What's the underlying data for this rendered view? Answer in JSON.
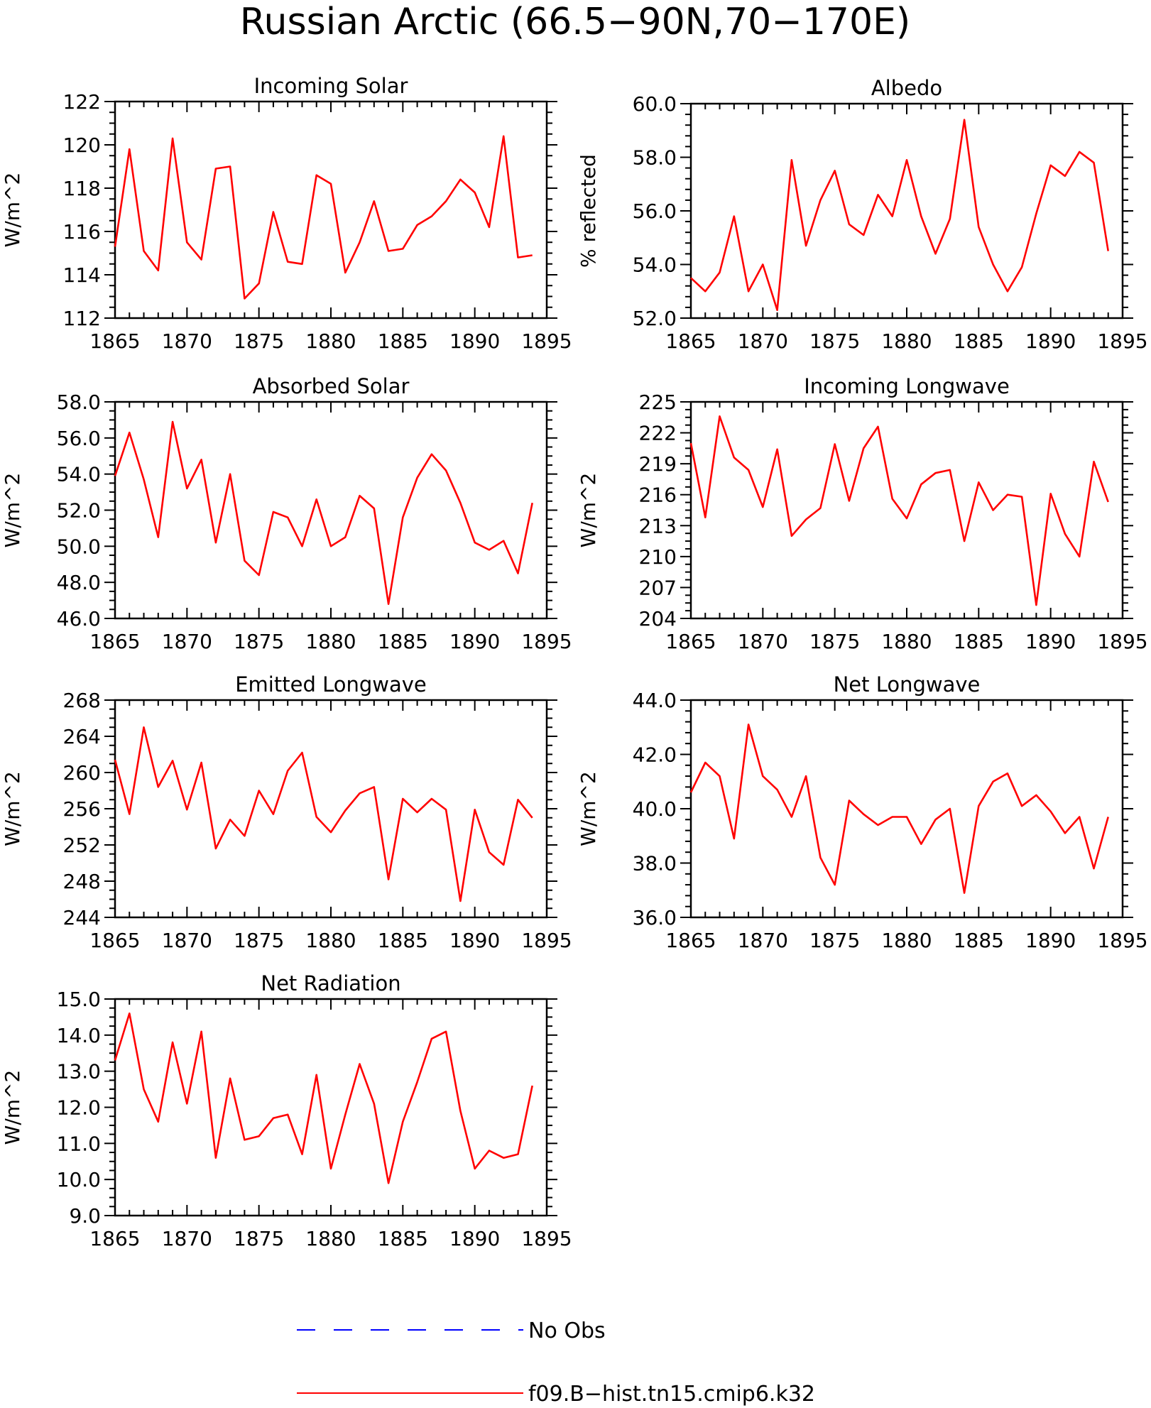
{
  "title": "Russian Arctic (66.5−90N,70−170E)",
  "colors": {
    "model": "#ff0000",
    "obs": "#0000ff"
  },
  "legend": [
    {
      "label": "No Obs",
      "color": "#0000ff",
      "style": "dashed"
    },
    {
      "label": "f09.B−hist.tn15.cmip6.k32",
      "color": "#ff0000",
      "style": "solid"
    }
  ],
  "chart_data": [
    {
      "type": "line",
      "title": "Incoming Solar",
      "ylabel": "W/m^2",
      "xlim": [
        1865,
        1895
      ],
      "ylim": [
        112,
        122
      ],
      "yticks": [
        112,
        114,
        116,
        118,
        120,
        122
      ],
      "ytick_labels": [
        "112",
        "114",
        "116",
        "118",
        "120",
        "122"
      ],
      "xticks": [
        1865,
        1870,
        1875,
        1880,
        1885,
        1890,
        1895
      ],
      "ytick_minor": 0.5,
      "series": [
        {
          "name": "f09.B−hist.tn15.cmip6.k32",
          "x": [
            1865,
            1866,
            1867,
            1868,
            1869,
            1870,
            1871,
            1872,
            1873,
            1874,
            1875,
            1876,
            1877,
            1878,
            1879,
            1880,
            1881,
            1882,
            1883,
            1884,
            1885,
            1886,
            1887,
            1888,
            1889,
            1890,
            1891,
            1892,
            1893,
            1894
          ],
          "values": [
            115.3,
            119.8,
            115.1,
            114.2,
            120.3,
            115.5,
            114.7,
            118.9,
            119.0,
            112.9,
            113.6,
            116.9,
            114.6,
            114.5,
            118.6,
            118.2,
            114.1,
            115.5,
            117.4,
            115.1,
            115.2,
            116.3,
            116.7,
            117.4,
            118.4,
            117.8,
            116.2,
            120.4,
            114.8,
            114.9
          ]
        }
      ]
    },
    {
      "type": "line",
      "title": "Albedo",
      "ylabel": "% reflected",
      "xlim": [
        1865,
        1895
      ],
      "ylim": [
        52,
        60
      ],
      "yticks": [
        52,
        54,
        56,
        58,
        60
      ],
      "ytick_labels": [
        "52.0",
        "54.0",
        "56.0",
        "58.0",
        "60.0"
      ],
      "xticks": [
        1865,
        1870,
        1875,
        1880,
        1885,
        1890,
        1895
      ],
      "ytick_minor": 0.4,
      "series": [
        {
          "name": "f09.B−hist.tn15.cmip6.k32",
          "x": [
            1865,
            1866,
            1867,
            1868,
            1869,
            1870,
            1871,
            1872,
            1873,
            1874,
            1875,
            1876,
            1877,
            1878,
            1879,
            1880,
            1881,
            1882,
            1883,
            1884,
            1885,
            1886,
            1887,
            1888,
            1889,
            1890,
            1891,
            1892,
            1893,
            1894
          ],
          "values": [
            53.5,
            53.0,
            53.7,
            55.8,
            53.0,
            54.0,
            52.3,
            57.9,
            54.7,
            56.4,
            57.5,
            55.5,
            55.1,
            56.6,
            55.8,
            57.9,
            55.8,
            54.4,
            55.7,
            59.4,
            55.4,
            54.0,
            53.0,
            53.9,
            55.9,
            57.7,
            57.3,
            58.2,
            57.8,
            54.5
          ]
        }
      ]
    },
    {
      "type": "line",
      "title": "Absorbed Solar",
      "ylabel": "W/m^2",
      "xlim": [
        1865,
        1895
      ],
      "ylim": [
        46,
        58
      ],
      "yticks": [
        46,
        48,
        50,
        52,
        54,
        56,
        58
      ],
      "ytick_labels": [
        "46.0",
        "48.0",
        "50.0",
        "52.0",
        "54.0",
        "56.0",
        "58.0"
      ],
      "xticks": [
        1865,
        1870,
        1875,
        1880,
        1885,
        1890,
        1895
      ],
      "ytick_minor": 0.5,
      "series": [
        {
          "name": "f09.B−hist.tn15.cmip6.k32",
          "x": [
            1865,
            1866,
            1867,
            1868,
            1869,
            1870,
            1871,
            1872,
            1873,
            1874,
            1875,
            1876,
            1877,
            1878,
            1879,
            1880,
            1881,
            1882,
            1883,
            1884,
            1885,
            1886,
            1887,
            1888,
            1889,
            1890,
            1891,
            1892,
            1893,
            1894
          ],
          "values": [
            53.9,
            56.3,
            53.7,
            50.5,
            56.9,
            53.2,
            54.8,
            50.2,
            54.0,
            49.2,
            48.4,
            51.9,
            51.6,
            50.0,
            52.6,
            50.0,
            50.5,
            52.8,
            52.1,
            46.8,
            51.6,
            53.8,
            55.1,
            54.2,
            52.4,
            50.2,
            49.8,
            50.3,
            48.5,
            52.4
          ]
        }
      ]
    },
    {
      "type": "line",
      "title": "Incoming Longwave",
      "ylabel": "W/m^2",
      "xlim": [
        1865,
        1895
      ],
      "ylim": [
        204,
        225
      ],
      "yticks": [
        204,
        207,
        210,
        213,
        216,
        219,
        222,
        225
      ],
      "ytick_labels": [
        "204",
        "207",
        "210",
        "213",
        "216",
        "219",
        "222",
        "225"
      ],
      "xticks": [
        1865,
        1870,
        1875,
        1880,
        1885,
        1890,
        1895
      ],
      "ytick_minor": 0.75,
      "series": [
        {
          "name": "f09.B−hist.tn15.cmip6.k32",
          "x": [
            1865,
            1866,
            1867,
            1868,
            1869,
            1870,
            1871,
            1872,
            1873,
            1874,
            1875,
            1876,
            1877,
            1878,
            1879,
            1880,
            1881,
            1882,
            1883,
            1884,
            1885,
            1886,
            1887,
            1888,
            1889,
            1890,
            1891,
            1892,
            1893,
            1894
          ],
          "values": [
            221.0,
            213.8,
            223.6,
            219.6,
            218.4,
            214.8,
            220.4,
            212.0,
            213.6,
            214.7,
            220.9,
            215.4,
            220.5,
            222.6,
            215.6,
            213.7,
            217.0,
            218.1,
            218.4,
            211.5,
            217.2,
            214.5,
            216.0,
            215.8,
            205.3,
            216.1,
            212.2,
            210.0,
            219.2,
            215.3
          ]
        }
      ]
    },
    {
      "type": "line",
      "title": "Emitted Longwave",
      "ylabel": "W/m^2",
      "xlim": [
        1865,
        1895
      ],
      "ylim": [
        244,
        268
      ],
      "yticks": [
        244,
        248,
        252,
        256,
        260,
        264,
        268
      ],
      "ytick_labels": [
        "244",
        "248",
        "252",
        "256",
        "260",
        "264",
        "268"
      ],
      "xticks": [
        1865,
        1870,
        1875,
        1880,
        1885,
        1890,
        1895
      ],
      "ytick_minor": 1,
      "series": [
        {
          "name": "f09.B−hist.tn15.cmip6.k32",
          "x": [
            1865,
            1866,
            1867,
            1868,
            1869,
            1870,
            1871,
            1872,
            1873,
            1874,
            1875,
            1876,
            1877,
            1878,
            1879,
            1880,
            1881,
            1882,
            1883,
            1884,
            1885,
            1886,
            1887,
            1888,
            1889,
            1890,
            1891,
            1892,
            1893,
            1894
          ],
          "values": [
            261.4,
            255.4,
            265.0,
            258.4,
            261.3,
            255.9,
            261.1,
            251.6,
            254.8,
            253.0,
            258.0,
            255.4,
            260.2,
            262.2,
            255.1,
            253.4,
            255.8,
            257.7,
            258.4,
            248.2,
            257.1,
            255.6,
            257.1,
            255.9,
            245.8,
            255.9,
            251.2,
            249.8,
            257.0,
            255.0
          ]
        }
      ]
    },
    {
      "type": "line",
      "title": "Net Longwave",
      "ylabel": "W/m^2",
      "xlim": [
        1865,
        1895
      ],
      "ylim": [
        36,
        44
      ],
      "yticks": [
        36,
        38,
        40,
        42,
        44
      ],
      "ytick_labels": [
        "36.0",
        "38.0",
        "40.0",
        "42.0",
        "44.0"
      ],
      "xticks": [
        1865,
        1870,
        1875,
        1880,
        1885,
        1890,
        1895
      ],
      "ytick_minor": 0.4,
      "series": [
        {
          "name": "f09.B−hist.tn15.cmip6.k32",
          "x": [
            1865,
            1866,
            1867,
            1868,
            1869,
            1870,
            1871,
            1872,
            1873,
            1874,
            1875,
            1876,
            1877,
            1878,
            1879,
            1880,
            1881,
            1882,
            1883,
            1884,
            1885,
            1886,
            1887,
            1888,
            1889,
            1890,
            1891,
            1892,
            1893,
            1894
          ],
          "values": [
            40.6,
            41.7,
            41.2,
            38.9,
            43.1,
            41.2,
            40.7,
            39.7,
            41.2,
            38.2,
            37.2,
            40.3,
            39.8,
            39.4,
            39.7,
            39.7,
            38.7,
            39.6,
            40.0,
            36.9,
            40.1,
            41.0,
            41.3,
            40.1,
            40.5,
            39.9,
            39.1,
            39.7,
            37.8,
            39.7
          ]
        }
      ]
    },
    {
      "type": "line",
      "title": "Net Radiation",
      "ylabel": "W/m^2",
      "xlim": [
        1865,
        1895
      ],
      "ylim": [
        9,
        15
      ],
      "yticks": [
        9,
        10,
        11,
        12,
        13,
        14,
        15
      ],
      "ytick_labels": [
        "9.0",
        "10.0",
        "11.0",
        "12.0",
        "13.0",
        "14.0",
        "15.0"
      ],
      "xticks": [
        1865,
        1870,
        1875,
        1880,
        1885,
        1890,
        1895
      ],
      "ytick_minor": 0.25,
      "series": [
        {
          "name": "f09.B−hist.tn15.cmip6.k32",
          "x": [
            1865,
            1866,
            1867,
            1868,
            1869,
            1870,
            1871,
            1872,
            1873,
            1874,
            1875,
            1876,
            1877,
            1878,
            1879,
            1880,
            1881,
            1882,
            1883,
            1884,
            1885,
            1886,
            1887,
            1888,
            1889,
            1890,
            1891,
            1892,
            1893,
            1894
          ],
          "values": [
            13.3,
            14.6,
            12.5,
            11.6,
            13.8,
            12.1,
            14.1,
            10.6,
            12.8,
            11.1,
            11.2,
            11.7,
            11.8,
            10.7,
            12.9,
            10.3,
            11.8,
            13.2,
            12.1,
            9.9,
            11.6,
            12.7,
            13.9,
            14.1,
            11.9,
            10.3,
            10.8,
            10.6,
            10.7,
            12.6
          ]
        }
      ]
    }
  ]
}
